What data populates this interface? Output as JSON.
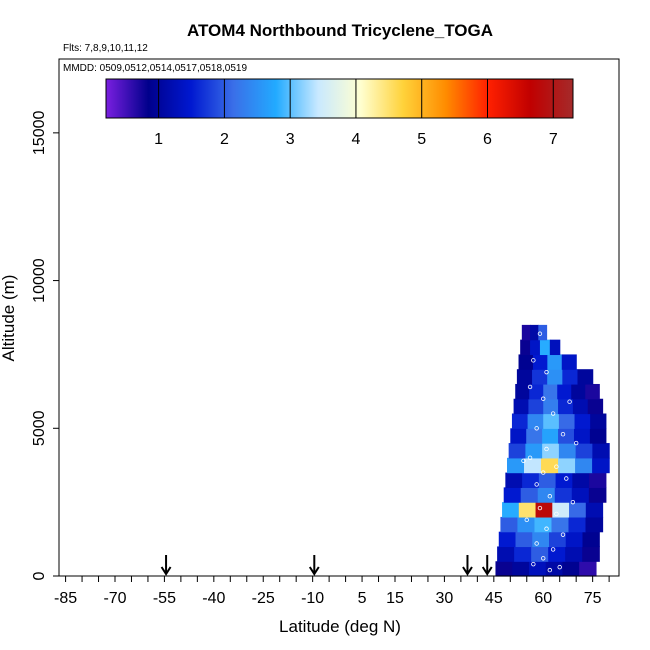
{
  "chart_data": {
    "type": "heatmap",
    "title": "ATOM4 Northbound Tricyclene_TOGA",
    "flights_label": "Flts: 7,8,9,10,11,12",
    "mmdd_label": "MMDD: 0509,0512,0514,0517,0518,0519",
    "xlabel": "Latitude (deg N)",
    "ylabel": "Altitude (m)",
    "xlim": [
      -87,
      83
    ],
    "ylim": [
      0,
      17500
    ],
    "x_ticks": [
      -85,
      -70,
      -55,
      -40,
      -25,
      -10,
      5,
      15,
      30,
      45,
      60,
      75
    ],
    "x_tick_labels": [
      "-85",
      "-70",
      "-55",
      "-40",
      "-25",
      "-10",
      "5",
      "15",
      "30",
      "45",
      "60",
      "75"
    ],
    "y_ticks": [
      0,
      5000,
      10000,
      15000
    ],
    "y_tick_labels": [
      "0",
      "5000",
      "10000",
      "15000"
    ],
    "colorbar": {
      "min": 0.2,
      "max": 7.3,
      "ticks": [
        1,
        2,
        3,
        4,
        5,
        6,
        7
      ],
      "tick_labels": [
        "1",
        "2",
        "3",
        "4",
        "5",
        "6",
        "7"
      ],
      "colors": [
        "#7a1fe0",
        "#00008b",
        "#0018d0",
        "#3a6fe8",
        "#22aaff",
        "#c9e9ff",
        "#ffffd0",
        "#ffd23a",
        "#ff8c00",
        "#ff2000",
        "#c00000",
        "#a52a2a"
      ]
    },
    "flight_arrows_lat": [
      -54.5,
      -9.5,
      37,
      43
    ],
    "altitude_bins_m": [
      250,
      750,
      1250,
      1750,
      2250,
      2750,
      3250,
      3750,
      4250,
      4750,
      5250,
      5750,
      6250,
      6750,
      7250,
      7750,
      8250
    ],
    "curtain": [
      {
        "alt": 250,
        "lat0": 45.5,
        "lat1": 76,
        "values": [
          0.8,
          1.0,
          1.3,
          1.1,
          0.9,
          0.6
        ]
      },
      {
        "alt": 750,
        "lat0": 46,
        "lat1": 77,
        "values": [
          1.2,
          1.6,
          2.0,
          1.5,
          1.2,
          0.8
        ]
      },
      {
        "alt": 1250,
        "lat0": 46.5,
        "lat1": 77,
        "values": [
          1.5,
          2.0,
          2.4,
          1.8,
          1.4,
          0.9
        ]
      },
      {
        "alt": 1750,
        "lat0": 47,
        "lat1": 78,
        "values": [
          2.0,
          2.5,
          2.9,
          2.2,
          1.6,
          1.0
        ]
      },
      {
        "alt": 2250,
        "lat0": 47.5,
        "lat1": 78,
        "values": [
          2.8,
          4.5,
          6.8,
          3.5,
          2.1,
          1.2
        ]
      },
      {
        "alt": 2750,
        "lat0": 48,
        "lat1": 79,
        "values": [
          1.5,
          2.0,
          2.4,
          1.7,
          1.3,
          0.8
        ]
      },
      {
        "alt": 3250,
        "lat0": 48.5,
        "lat1": 79,
        "values": [
          1.2,
          1.6,
          2.0,
          1.5,
          1.1,
          0.7
        ]
      },
      {
        "alt": 3750,
        "lat0": 49,
        "lat1": 80,
        "values": [
          2.6,
          3.4,
          4.6,
          3.2,
          2.4,
          1.4
        ]
      },
      {
        "alt": 4250,
        "lat0": 49.5,
        "lat1": 80,
        "values": [
          1.8,
          2.6,
          3.2,
          2.4,
          1.8,
          1.2
        ]
      },
      {
        "alt": 4750,
        "lat0": 50,
        "lat1": 79,
        "values": [
          1.4,
          2.2,
          2.7,
          1.9,
          1.4,
          0.9
        ]
      },
      {
        "alt": 5250,
        "lat0": 50.5,
        "lat1": 79,
        "values": [
          1.6,
          2.4,
          3.0,
          2.1,
          1.5,
          1.0
        ]
      },
      {
        "alt": 5750,
        "lat0": 51,
        "lat1": 78,
        "values": [
          1.2,
          1.8,
          2.3,
          1.6,
          1.2,
          0.8
        ]
      },
      {
        "alt": 6250,
        "lat0": 51.5,
        "lat1": 77,
        "values": [
          1.0,
          1.6,
          2.2,
          1.5,
          1.0,
          0.7
        ]
      },
      {
        "alt": 6750,
        "lat0": 52,
        "lat1": 75,
        "values": [
          1.0,
          1.7,
          2.5,
          1.6,
          1.0
        ]
      },
      {
        "alt": 7250,
        "lat0": 52.5,
        "lat1": 70,
        "values": [
          0.9,
          1.5,
          2.6,
          1.4
        ]
      },
      {
        "alt": 7750,
        "lat0": 53,
        "lat1": 65,
        "values": [
          0.8,
          1.4,
          2.8,
          1.3
        ]
      },
      {
        "alt": 8250,
        "lat0": 53.5,
        "lat1": 61,
        "values": [
          0.7,
          1.1,
          2.0
        ]
      }
    ],
    "samples": [
      {
        "lat": 59,
        "alt": 8200
      },
      {
        "lat": 57,
        "alt": 7300
      },
      {
        "lat": 61,
        "alt": 6900
      },
      {
        "lat": 60,
        "alt": 6000
      },
      {
        "lat": 63,
        "alt": 5500
      },
      {
        "lat": 58,
        "alt": 5000
      },
      {
        "lat": 66,
        "alt": 4800
      },
      {
        "lat": 61,
        "alt": 4300
      },
      {
        "lat": 56,
        "alt": 4000
      },
      {
        "lat": 64,
        "alt": 3700
      },
      {
        "lat": 60,
        "alt": 3500
      },
      {
        "lat": 58,
        "alt": 3100
      },
      {
        "lat": 67,
        "alt": 3300
      },
      {
        "lat": 62,
        "alt": 2700
      },
      {
        "lat": 59,
        "alt": 2300
      },
      {
        "lat": 64,
        "alt": 2100
      },
      {
        "lat": 55,
        "alt": 1900
      },
      {
        "lat": 61,
        "alt": 1600
      },
      {
        "lat": 66,
        "alt": 1400
      },
      {
        "lat": 58,
        "alt": 1100
      },
      {
        "lat": 63,
        "alt": 900
      },
      {
        "lat": 60,
        "alt": 600
      },
      {
        "lat": 57,
        "alt": 400
      },
      {
        "lat": 65,
        "alt": 300
      },
      {
        "lat": 62,
        "alt": 200
      },
      {
        "lat": 69,
        "alt": 2500
      },
      {
        "lat": 70,
        "alt": 4500
      },
      {
        "lat": 56,
        "alt": 6400
      },
      {
        "lat": 68,
        "alt": 5900
      },
      {
        "lat": 54,
        "alt": 3900
      }
    ]
  }
}
